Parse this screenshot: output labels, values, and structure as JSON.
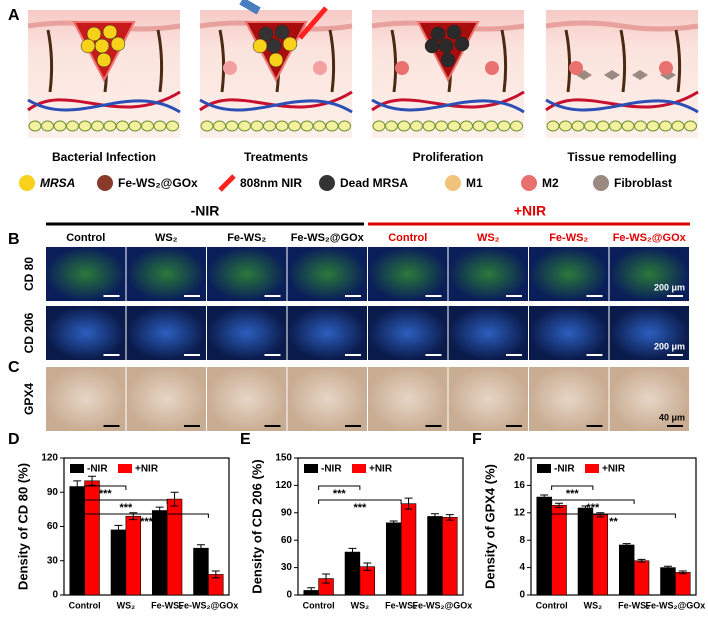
{
  "panel_labels": [
    "A",
    "B",
    "C",
    "D",
    "E",
    "F"
  ],
  "panel_a": {
    "stages": [
      "Bacterial Infection",
      "Treatments",
      "Proliferation",
      "Tissue remodelling"
    ],
    "legend": [
      "MRSA",
      "Fe-WS₂@GOx",
      "808nm NIR",
      "Dead MRSA",
      "M1",
      "M2",
      "Fibroblast"
    ]
  },
  "panel_b": {
    "groups": [
      "-NIR",
      "+NIR"
    ],
    "columns": [
      "Control",
      "WS₂",
      "Fe-WS₂",
      "Fe-WS₂@GOx"
    ],
    "rows": [
      "CD 80",
      "CD 206",
      "GPX4"
    ],
    "scale_bars": [
      "200 μm",
      "200 μm",
      "40 μm"
    ]
  },
  "chart_data": [
    {
      "type": "bar",
      "ylabel": "Density of CD 80 (%)",
      "categories": [
        "Control",
        "WS₂",
        "Fe-WS₂",
        "Fe-WS₂@GOx"
      ],
      "series": [
        {
          "name": "-NIR",
          "color": "#000000",
          "values": [
            95,
            57,
            74,
            41
          ],
          "errors": [
            5,
            4,
            3,
            3
          ]
        },
        {
          "name": "+NIR",
          "color": "#ff0000",
          "values": [
            100,
            69,
            84,
            18
          ],
          "errors": [
            4,
            3,
            6,
            3
          ]
        }
      ],
      "ylim": [
        0,
        120
      ],
      "yticks": [
        0,
        30,
        60,
        90,
        120
      ],
      "legend": "top-left",
      "annotations": [
        "***",
        "***",
        "***"
      ]
    },
    {
      "type": "bar",
      "ylabel": "Density of CD 206 (%)",
      "categories": [
        "Control",
        "WS₂",
        "Fe-WS₂",
        "Fe-WS₂@GOx"
      ],
      "series": [
        {
          "name": "-NIR",
          "color": "#000000",
          "values": [
            5,
            47,
            79,
            86
          ],
          "errors": [
            3,
            4,
            2,
            3
          ]
        },
        {
          "name": "+NIR",
          "color": "#ff0000",
          "values": [
            18,
            31,
            100,
            85
          ],
          "errors": [
            5,
            4,
            6,
            3
          ]
        }
      ],
      "ylim": [
        0,
        150
      ],
      "yticks": [
        0,
        30,
        60,
        90,
        120,
        150
      ],
      "legend": "top-left",
      "annotations": [
        "***",
        "***"
      ]
    },
    {
      "type": "bar",
      "ylabel": "Density of GPX4 (%)",
      "categories": [
        "Control",
        "WS₂",
        "Fe-WS₂",
        "Fe-WS₂@GOx"
      ],
      "series": [
        {
          "name": "-NIR",
          "color": "#000000",
          "values": [
            14.3,
            12.7,
            7.3,
            4.0
          ],
          "errors": [
            0.3,
            0.3,
            0.2,
            0.2
          ]
        },
        {
          "name": "+NIR",
          "color": "#ff0000",
          "values": [
            13.1,
            11.7,
            5.0,
            3.3
          ],
          "errors": [
            0.3,
            0.3,
            0.2,
            0.2
          ]
        }
      ],
      "ylim": [
        0,
        20
      ],
      "yticks": [
        0,
        4,
        8,
        12,
        16,
        20
      ],
      "legend": "top-left",
      "annotations": [
        "***",
        "***",
        "**"
      ]
    }
  ]
}
